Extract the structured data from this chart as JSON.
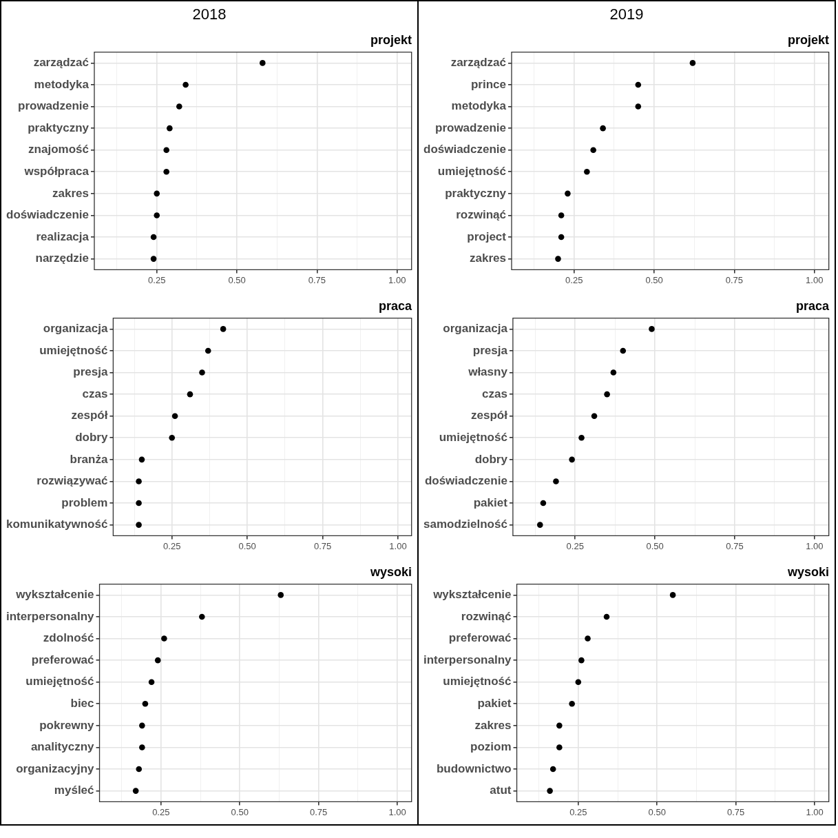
{
  "chart_data": [
    {
      "type": "scatter",
      "orientation": "horizontal",
      "subtitle": "2018",
      "title": "projekt",
      "categories": [
        "zarządzać",
        "metodyka",
        "prowadzenie",
        "praktyczny",
        "znajomość",
        "współpraca",
        "zakres",
        "doświadczenie",
        "realizacja",
        "narzędzie"
      ],
      "values": [
        0.58,
        0.34,
        0.32,
        0.29,
        0.28,
        0.28,
        0.25,
        0.25,
        0.24,
        0.24
      ],
      "color": "#000000",
      "marker": "circle",
      "grid": true,
      "xlim": [
        0.055,
        1.045
      ],
      "xticks": [
        {
          "value": 0.125,
          "label": null
        },
        {
          "value": 0.25,
          "label": "0.25"
        },
        {
          "value": 0.375,
          "label": null
        },
        {
          "value": 0.5,
          "label": "0.50"
        },
        {
          "value": 0.625,
          "label": null
        },
        {
          "value": 0.75,
          "label": "0.75"
        },
        {
          "value": 0.875,
          "label": null
        },
        {
          "value": 1,
          "label": "1.00"
        }
      ]
    },
    {
      "type": "scatter",
      "orientation": "horizontal",
      "subtitle": "2019",
      "title": "projekt",
      "categories": [
        "zarządzać",
        "prince",
        "metodyka",
        "prowadzenie",
        "doświadczenie",
        "umiejętność",
        "praktyczny",
        "rozwinąć",
        "project",
        "zakres"
      ],
      "values": [
        0.62,
        0.45,
        0.45,
        0.34,
        0.31,
        0.29,
        0.23,
        0.21,
        0.21,
        0.2
      ],
      "color": "#000000",
      "marker": "circle",
      "grid": true,
      "xlim": [
        0.055,
        1.045
      ],
      "xticks": [
        {
          "value": 0.125,
          "label": null
        },
        {
          "value": 0.25,
          "label": "0.25"
        },
        {
          "value": 0.375,
          "label": null
        },
        {
          "value": 0.5,
          "label": "0.50"
        },
        {
          "value": 0.625,
          "label": null
        },
        {
          "value": 0.75,
          "label": "0.75"
        },
        {
          "value": 0.875,
          "label": null
        },
        {
          "value": 1,
          "label": "1.00"
        }
      ]
    },
    {
      "type": "scatter",
      "orientation": "horizontal",
      "title": "praca",
      "categories": [
        "organizacja",
        "umiejętność",
        "presja",
        "czas",
        "zespół",
        "dobry",
        "branża",
        "rozwiązywać",
        "problem",
        "komunikatywność"
      ],
      "values": [
        0.42,
        0.37,
        0.35,
        0.31,
        0.26,
        0.25,
        0.15,
        0.14,
        0.14,
        0.14
      ],
      "color": "#000000",
      "marker": "circle",
      "grid": true,
      "xlim": [
        0.055,
        1.045
      ],
      "xticks": [
        {
          "value": 0.125,
          "label": null
        },
        {
          "value": 0.25,
          "label": "0.25"
        },
        {
          "value": 0.375,
          "label": null
        },
        {
          "value": 0.5,
          "label": "0.50"
        },
        {
          "value": 0.625,
          "label": null
        },
        {
          "value": 0.75,
          "label": "0.75"
        },
        {
          "value": 0.875,
          "label": null
        },
        {
          "value": 1,
          "label": "1.00"
        }
      ]
    },
    {
      "type": "scatter",
      "orientation": "horizontal",
      "title": "praca",
      "categories": [
        "organizacja",
        "presja",
        "własny",
        "czas",
        "zespół",
        "umiejętność",
        "dobry",
        "doświadczenie",
        "pakiet",
        "samodzielność"
      ],
      "values": [
        0.49,
        0.4,
        0.37,
        0.35,
        0.31,
        0.27,
        0.24,
        0.19,
        0.15,
        0.14
      ],
      "color": "#000000",
      "marker": "circle",
      "grid": true,
      "xlim": [
        0.055,
        1.045
      ],
      "xticks": [
        {
          "value": 0.125,
          "label": null
        },
        {
          "value": 0.25,
          "label": "0.25"
        },
        {
          "value": 0.375,
          "label": null
        },
        {
          "value": 0.5,
          "label": "0.50"
        },
        {
          "value": 0.625,
          "label": null
        },
        {
          "value": 0.75,
          "label": "0.75"
        },
        {
          "value": 0.875,
          "label": null
        },
        {
          "value": 1,
          "label": "1.00"
        }
      ]
    },
    {
      "type": "scatter",
      "orientation": "horizontal",
      "title": "wysoki",
      "categories": [
        "wykształcenie",
        "interpersonalny",
        "zdolność",
        "preferować",
        "umiejętność",
        "biec",
        "pokrewny",
        "analityczny",
        "organizacyjny",
        "myśleć"
      ],
      "values": [
        0.63,
        0.38,
        0.26,
        0.24,
        0.22,
        0.2,
        0.19,
        0.19,
        0.18,
        0.17
      ],
      "color": "#000000",
      "marker": "circle",
      "grid": true,
      "xlim": [
        0.055,
        1.045
      ],
      "xticks": [
        {
          "value": 0.125,
          "label": null
        },
        {
          "value": 0.25,
          "label": "0.25"
        },
        {
          "value": 0.375,
          "label": null
        },
        {
          "value": 0.5,
          "label": "0.50"
        },
        {
          "value": 0.625,
          "label": null
        },
        {
          "value": 0.75,
          "label": "0.75"
        },
        {
          "value": 0.875,
          "label": null
        },
        {
          "value": 1,
          "label": "1.00"
        }
      ]
    },
    {
      "type": "scatter",
      "orientation": "horizontal",
      "title": "wysoki",
      "categories": [
        "wykształcenie",
        "rozwinąć",
        "preferować",
        "interpersonalny",
        "umiejętność",
        "pakiet",
        "zakres",
        "poziom",
        "budownictwo",
        "atut"
      ],
      "values": [
        0.55,
        0.34,
        0.28,
        0.26,
        0.25,
        0.23,
        0.19,
        0.19,
        0.17,
        0.16
      ],
      "color": "#000000",
      "marker": "circle",
      "grid": true,
      "xlim": [
        0.055,
        1.045
      ],
      "xticks": [
        {
          "value": 0.125,
          "label": null
        },
        {
          "value": 0.25,
          "label": "0.25"
        },
        {
          "value": 0.375,
          "label": null
        },
        {
          "value": 0.5,
          "label": "0.50"
        },
        {
          "value": 0.625,
          "label": null
        },
        {
          "value": 0.75,
          "label": "0.75"
        },
        {
          "value": 0.875,
          "label": null
        },
        {
          "value": 1,
          "label": "1.00"
        }
      ]
    }
  ]
}
